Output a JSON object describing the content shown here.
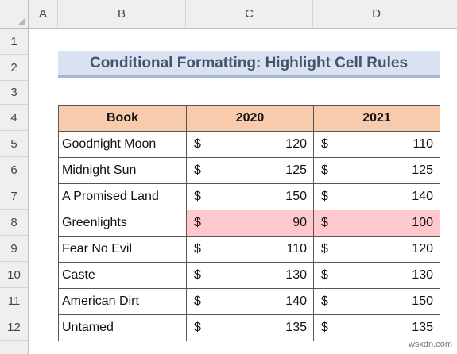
{
  "columns": [
    "A",
    "B",
    "C",
    "D"
  ],
  "rows": [
    "1",
    "2",
    "3",
    "4",
    "5",
    "6",
    "7",
    "8",
    "9",
    "10",
    "11",
    "12"
  ],
  "title": "Conditional Formatting: Highlight Cell Rules",
  "table": {
    "headers": [
      "Book",
      "2020",
      "2021"
    ],
    "currency": "$",
    "rows": [
      {
        "book": "Goodnight Moon",
        "y2020": "120",
        "y2021": "110"
      },
      {
        "book": "Midnight Sun",
        "y2020": "125",
        "y2021": "125"
      },
      {
        "book": "A Promised Land",
        "y2020": "150",
        "y2021": "140"
      },
      {
        "book": "Greenlights",
        "y2020": "90",
        "y2021": "100"
      },
      {
        "book": "Fear No Evil",
        "y2020": "110",
        "y2021": "120"
      },
      {
        "book": "Caste",
        "y2020": "130",
        "y2021": "130"
      },
      {
        "book": "American Dirt",
        "y2020": "140",
        "y2021": "150"
      },
      {
        "book": "Untamed",
        "y2020": "135",
        "y2021": "135"
      }
    ],
    "highlight_fill": "#ffc7ce",
    "highlight_text": "#9c0006",
    "header_fill": "#f8cbad"
  },
  "watermark": "wsxdn.com"
}
